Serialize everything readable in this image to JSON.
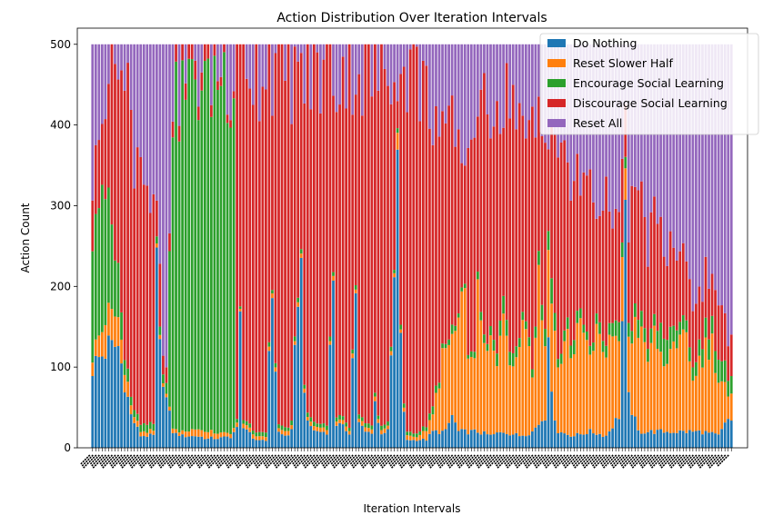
{
  "chart_data": {
    "type": "bar",
    "stacked": true,
    "title": "Action Distribution Over Iteration Intervals",
    "xlabel": "Iteration Intervals",
    "ylabel": "Action Count",
    "ylim": [
      0,
      520
    ],
    "yticks": [
      0,
      100,
      200,
      300,
      400,
      500
    ],
    "x_tick_label_rotation_deg": 45,
    "x_tick_labels_note": "x-axis tick labels are overlapping and illegible",
    "grid": false,
    "legend_position": "top-right",
    "num_intervals": 200,
    "total_per_interval": 500,
    "series": [
      {
        "name": "Do Nothing",
        "color": "#1f77b4",
        "keyframes": [
          [
            0,
            100
          ],
          [
            5,
            125
          ],
          [
            8,
            125
          ],
          [
            12,
            40
          ],
          [
            15,
            15
          ],
          [
            19,
            15
          ],
          [
            20,
            220
          ],
          [
            21,
            120
          ],
          [
            23,
            60
          ],
          [
            25,
            20
          ],
          [
            28,
            15
          ],
          [
            32,
            15
          ],
          [
            36,
            12
          ],
          [
            40,
            12
          ],
          [
            43,
            14
          ],
          [
            45,
            25
          ],
          [
            46,
            230
          ],
          [
            47,
            30
          ],
          [
            50,
            10
          ],
          [
            54,
            10
          ],
          [
            56,
            200
          ],
          [
            57,
            100
          ],
          [
            58,
            20
          ],
          [
            60,
            15
          ],
          [
            62,
            20
          ],
          [
            64,
            200
          ],
          [
            65,
            220
          ],
          [
            66,
            80
          ],
          [
            67,
            30
          ],
          [
            70,
            20
          ],
          [
            73,
            20
          ],
          [
            75,
            220
          ],
          [
            76,
            30
          ],
          [
            78,
            25
          ],
          [
            80,
            20
          ],
          [
            82,
            200
          ],
          [
            83,
            30
          ],
          [
            85,
            20
          ],
          [
            87,
            20
          ],
          [
            88,
            60
          ],
          [
            89,
            30
          ],
          [
            90,
            20
          ],
          [
            92,
            20
          ],
          [
            94,
            200
          ],
          [
            95,
            330
          ],
          [
            96,
            150
          ],
          [
            97,
            40
          ],
          [
            98,
            10
          ],
          [
            101,
            10
          ],
          [
            104,
            10
          ],
          [
            106,
            20
          ],
          [
            110,
            20
          ],
          [
            112,
            40
          ],
          [
            114,
            20
          ],
          [
            117,
            20
          ],
          [
            120,
            20
          ],
          [
            124,
            15
          ],
          [
            128,
            20
          ],
          [
            133,
            15
          ],
          [
            137,
            20
          ],
          [
            141,
            40
          ],
          [
            142,
            160
          ],
          [
            143,
            60
          ],
          [
            145,
            20
          ],
          [
            150,
            15
          ],
          [
            155,
            20
          ],
          [
            160,
            15
          ],
          [
            164,
            40
          ],
          [
            166,
            270
          ],
          [
            167,
            60
          ],
          [
            170,
            20
          ],
          [
            175,
            20
          ],
          [
            180,
            20
          ],
          [
            185,
            20
          ],
          [
            190,
            20
          ],
          [
            195,
            15
          ],
          [
            198,
            35
          ],
          [
            199,
            35
          ]
        ]
      },
      {
        "name": "Reset Slower Half",
        "color": "#ff7f0e",
        "keyframes": [
          [
            0,
            20
          ],
          [
            5,
            40
          ],
          [
            8,
            35
          ],
          [
            12,
            10
          ],
          [
            15,
            5
          ],
          [
            19,
            5
          ],
          [
            20,
            5
          ],
          [
            23,
            5
          ],
          [
            25,
            5
          ],
          [
            28,
            5
          ],
          [
            32,
            10
          ],
          [
            36,
            8
          ],
          [
            40,
            6
          ],
          [
            43,
            5
          ],
          [
            45,
            5
          ],
          [
            47,
            5
          ],
          [
            50,
            5
          ],
          [
            54,
            5
          ],
          [
            56,
            5
          ],
          [
            58,
            5
          ],
          [
            60,
            5
          ],
          [
            64,
            5
          ],
          [
            66,
            5
          ],
          [
            70,
            5
          ],
          [
            73,
            5
          ],
          [
            75,
            5
          ],
          [
            78,
            5
          ],
          [
            80,
            5
          ],
          [
            82,
            5
          ],
          [
            85,
            5
          ],
          [
            88,
            5
          ],
          [
            90,
            5
          ],
          [
            94,
            5
          ],
          [
            95,
            20
          ],
          [
            96,
            5
          ],
          [
            98,
            5
          ],
          [
            101,
            5
          ],
          [
            104,
            10
          ],
          [
            106,
            20
          ],
          [
            108,
            60
          ],
          [
            110,
            120
          ],
          [
            112,
            90
          ],
          [
            114,
            150
          ],
          [
            116,
            200
          ],
          [
            117,
            110
          ],
          [
            119,
            80
          ],
          [
            120,
            180
          ],
          [
            122,
            100
          ],
          [
            124,
            120
          ],
          [
            126,
            80
          ],
          [
            128,
            170
          ],
          [
            130,
            90
          ],
          [
            133,
            120
          ],
          [
            135,
            150
          ],
          [
            137,
            70
          ],
          [
            139,
            180
          ],
          [
            141,
            90
          ],
          [
            143,
            130
          ],
          [
            145,
            80
          ],
          [
            148,
            120
          ],
          [
            150,
            100
          ],
          [
            152,
            160
          ],
          [
            155,
            80
          ],
          [
            157,
            130
          ],
          [
            160,
            90
          ],
          [
            162,
            120
          ],
          [
            164,
            100
          ],
          [
            166,
            40
          ],
          [
            168,
            100
          ],
          [
            170,
            130
          ],
          [
            173,
            90
          ],
          [
            175,
            120
          ],
          [
            178,
            80
          ],
          [
            180,
            110
          ],
          [
            182,
            90
          ],
          [
            185,
            130
          ],
          [
            187,
            60
          ],
          [
            190,
            100
          ],
          [
            193,
            110
          ],
          [
            195,
            70
          ],
          [
            197,
            50
          ],
          [
            198,
            25
          ],
          [
            199,
            30
          ]
        ]
      },
      {
        "name": "Encourage Social Learning",
        "color": "#2ca02c",
        "keyframes": [
          [
            0,
            150
          ],
          [
            2,
            170
          ],
          [
            4,
            150
          ],
          [
            6,
            100
          ],
          [
            8,
            60
          ],
          [
            10,
            20
          ],
          [
            12,
            10
          ],
          [
            15,
            10
          ],
          [
            19,
            10
          ],
          [
            20,
            10
          ],
          [
            22,
            10
          ],
          [
            23,
            15
          ],
          [
            25,
            420
          ],
          [
            30,
            430
          ],
          [
            35,
            440
          ],
          [
            40,
            450
          ],
          [
            44,
            450
          ],
          [
            45,
            5
          ],
          [
            47,
            5
          ],
          [
            50,
            5
          ],
          [
            54,
            5
          ],
          [
            56,
            5
          ],
          [
            58,
            5
          ],
          [
            60,
            5
          ],
          [
            64,
            5
          ],
          [
            66,
            5
          ],
          [
            70,
            5
          ],
          [
            73,
            5
          ],
          [
            75,
            5
          ],
          [
            78,
            5
          ],
          [
            80,
            5
          ],
          [
            82,
            5
          ],
          [
            85,
            5
          ],
          [
            88,
            5
          ],
          [
            90,
            5
          ],
          [
            94,
            5
          ],
          [
            96,
            5
          ],
          [
            98,
            5
          ],
          [
            101,
            5
          ],
          [
            104,
            5
          ],
          [
            106,
            10
          ],
          [
            110,
            5
          ],
          [
            112,
            10
          ],
          [
            114,
            5
          ],
          [
            117,
            5
          ],
          [
            120,
            10
          ],
          [
            124,
            10
          ],
          [
            128,
            20
          ],
          [
            133,
            10
          ],
          [
            137,
            10
          ],
          [
            141,
            20
          ],
          [
            143,
            30
          ],
          [
            145,
            10
          ],
          [
            150,
            15
          ],
          [
            155,
            10
          ],
          [
            160,
            15
          ],
          [
            164,
            20
          ],
          [
            166,
            15
          ],
          [
            170,
            20
          ],
          [
            175,
            15
          ],
          [
            178,
            40
          ],
          [
            180,
            25
          ],
          [
            185,
            15
          ],
          [
            190,
            20
          ],
          [
            195,
            30
          ],
          [
            198,
            20
          ],
          [
            199,
            20
          ]
        ]
      },
      {
        "name": "Discourage Social Learning",
        "color": "#d62728",
        "keyframes": [
          [
            0,
            70
          ],
          [
            3,
            90
          ],
          [
            5,
            140
          ],
          [
            7,
            250
          ],
          [
            9,
            300
          ],
          [
            11,
            350
          ],
          [
            13,
            330
          ],
          [
            15,
            350
          ],
          [
            17,
            300
          ],
          [
            19,
            250
          ],
          [
            20,
            40
          ],
          [
            21,
            80
          ],
          [
            22,
            20
          ],
          [
            23,
            20
          ],
          [
            25,
            20
          ],
          [
            30,
            20
          ],
          [
            35,
            20
          ],
          [
            40,
            10
          ],
          [
            44,
            10
          ],
          [
            45,
            440
          ],
          [
            47,
            460
          ],
          [
            50,
            460
          ],
          [
            54,
            460
          ],
          [
            56,
            260
          ],
          [
            57,
            360
          ],
          [
            58,
            440
          ],
          [
            60,
            440
          ],
          [
            62,
            440
          ],
          [
            64,
            260
          ],
          [
            65,
            240
          ],
          [
            66,
            380
          ],
          [
            67,
            420
          ],
          [
            70,
            440
          ],
          [
            73,
            440
          ],
          [
            75,
            240
          ],
          [
            76,
            420
          ],
          [
            78,
            440
          ],
          [
            80,
            440
          ],
          [
            82,
            260
          ],
          [
            83,
            420
          ],
          [
            85,
            440
          ],
          [
            87,
            440
          ],
          [
            88,
            400
          ],
          [
            89,
            420
          ],
          [
            90,
            440
          ],
          [
            92,
            440
          ],
          [
            94,
            260
          ],
          [
            95,
            40
          ],
          [
            96,
            290
          ],
          [
            97,
            420
          ],
          [
            98,
            460
          ],
          [
            101,
            460
          ],
          [
            104,
            400
          ],
          [
            106,
            380
          ],
          [
            108,
            300
          ],
          [
            110,
            240
          ],
          [
            112,
            260
          ],
          [
            114,
            200
          ],
          [
            116,
            150
          ],
          [
            117,
            250
          ],
          [
            119,
            300
          ],
          [
            120,
            200
          ],
          [
            122,
            280
          ],
          [
            124,
            270
          ],
          [
            126,
            330
          ],
          [
            128,
            220
          ],
          [
            130,
            340
          ],
          [
            133,
            280
          ],
          [
            135,
            200
          ],
          [
            137,
            300
          ],
          [
            139,
            180
          ],
          [
            141,
            240
          ],
          [
            142,
            120
          ],
          [
            143,
            200
          ],
          [
            145,
            250
          ],
          [
            148,
            200
          ],
          [
            150,
            190
          ],
          [
            152,
            150
          ],
          [
            155,
            220
          ],
          [
            157,
            130
          ],
          [
            160,
            180
          ],
          [
            162,
            140
          ],
          [
            164,
            120
          ],
          [
            166,
            60
          ],
          [
            168,
            160
          ],
          [
            170,
            150
          ],
          [
            173,
            120
          ],
          [
            175,
            140
          ],
          [
            178,
            100
          ],
          [
            180,
            110
          ],
          [
            182,
            90
          ],
          [
            185,
            70
          ],
          [
            187,
            80
          ],
          [
            190,
            70
          ],
          [
            193,
            60
          ],
          [
            195,
            70
          ],
          [
            197,
            50
          ],
          [
            198,
            40
          ],
          [
            199,
            60
          ]
        ]
      }
    ]
  }
}
